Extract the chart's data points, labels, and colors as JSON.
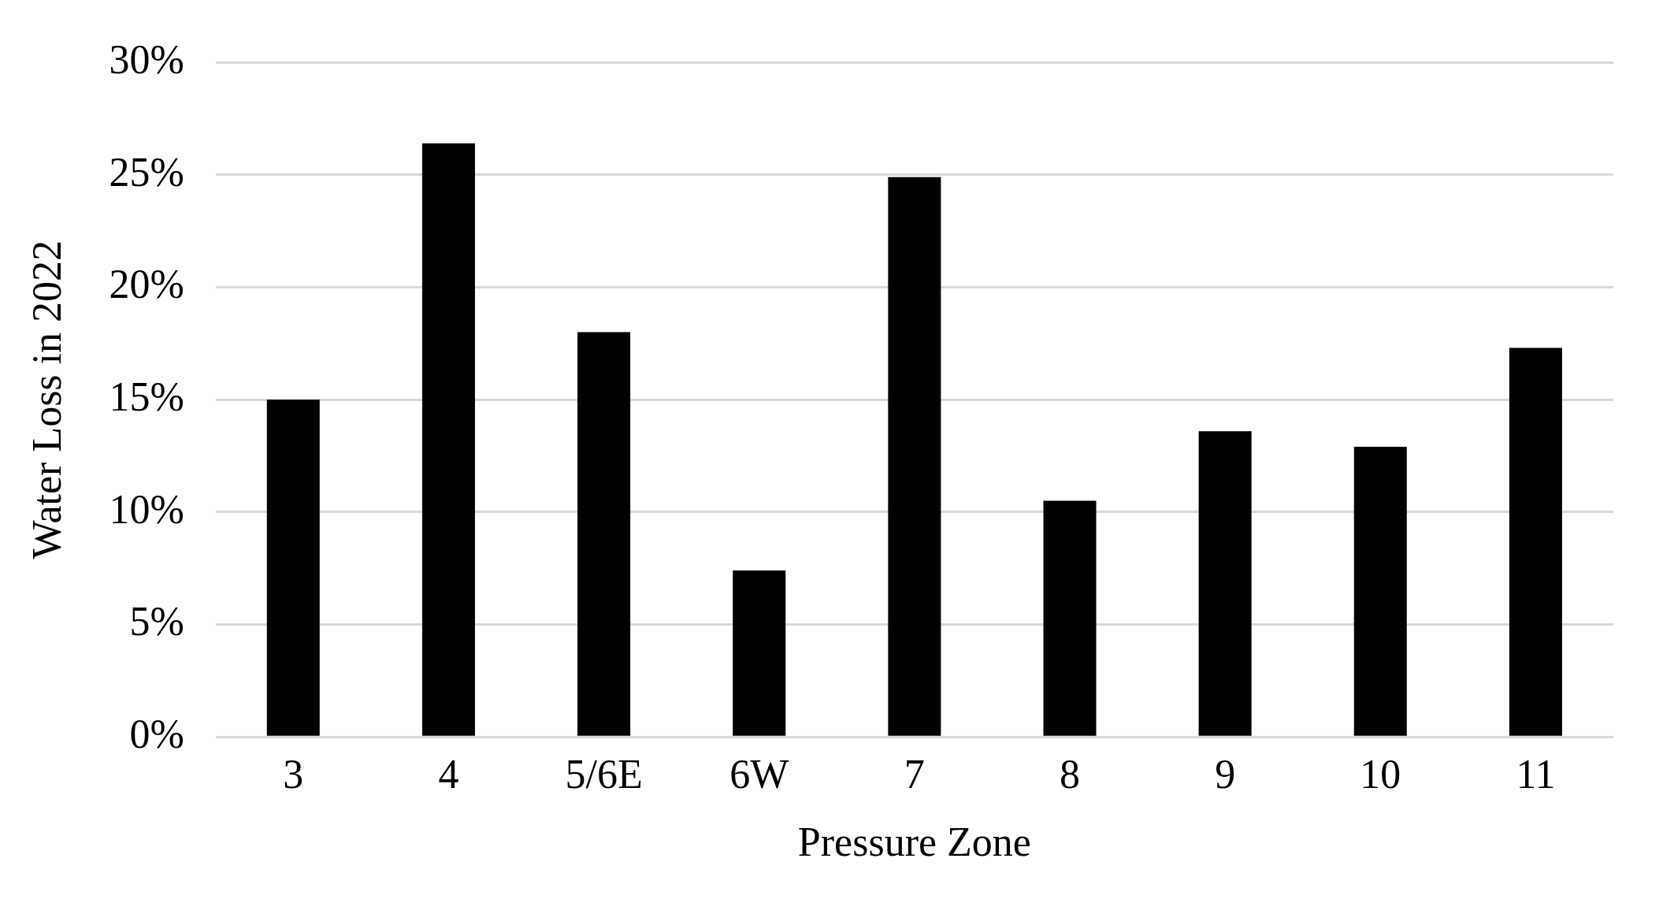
{
  "chart_data": {
    "type": "bar",
    "xlabel": "Pressure Zone",
    "ylabel": "Water Loss in 2022",
    "categories": [
      "3",
      "4",
      "5/6E",
      "6W",
      "7",
      "8",
      "9",
      "10",
      "11"
    ],
    "values": [
      15,
      26.4,
      18,
      7.4,
      24.9,
      10.5,
      13.6,
      12.9,
      17.3
    ],
    "color": "#000000",
    "ylim": [
      0,
      30
    ],
    "yticks": [
      {
        "value": 0,
        "label": "0%"
      },
      {
        "value": 5,
        "label": "5%"
      },
      {
        "value": 10,
        "label": "10%"
      },
      {
        "value": 15,
        "label": "15%"
      },
      {
        "value": 20,
        "label": "20%"
      },
      {
        "value": 25,
        "label": "25%"
      },
      {
        "value": 30,
        "label": "30%"
      }
    ],
    "grid": "y",
    "legend": false
  }
}
